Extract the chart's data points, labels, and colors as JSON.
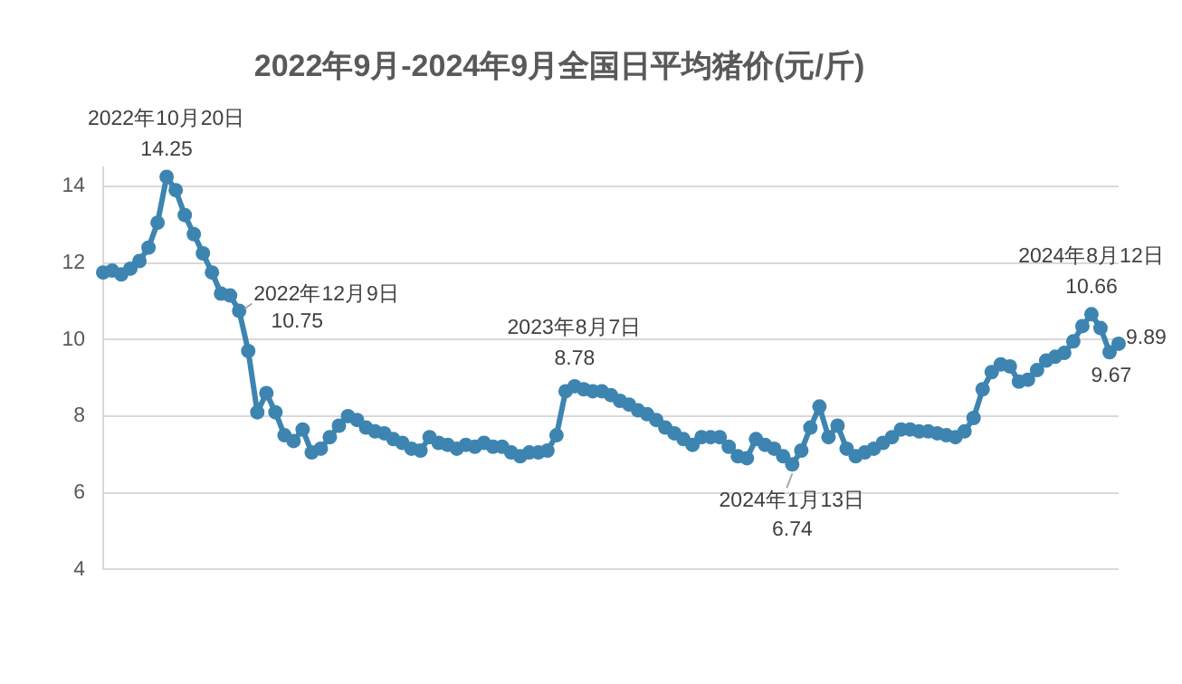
{
  "chart_data": {
    "type": "line",
    "title": "2022年9月-2024年9月全国日平均猪价(元/斤)",
    "categories": [
      null,
      null,
      null,
      null,
      null,
      null,
      null,
      null,
      null,
      null,
      null,
      null,
      null,
      null,
      null,
      null,
      null,
      null,
      null,
      null,
      null,
      null,
      null,
      null,
      null,
      null,
      null,
      null,
      null,
      null,
      null,
      null,
      null,
      null,
      null,
      null,
      null,
      null,
      null,
      null,
      null,
      null,
      null,
      null,
      null,
      null,
      null,
      null,
      null,
      null,
      null,
      null,
      null,
      null,
      null,
      null,
      null,
      null,
      null,
      null,
      null,
      null,
      null,
      null,
      null,
      null,
      null,
      null,
      null,
      null,
      null,
      null,
      null,
      null,
      null,
      null,
      null,
      null,
      null,
      null,
      null,
      null,
      null,
      null,
      null,
      null,
      null,
      null,
      null,
      null,
      null,
      null,
      null,
      null,
      null,
      null,
      null,
      null,
      null,
      null,
      null,
      null,
      null,
      null,
      null,
      null,
      null,
      null,
      null,
      null,
      null,
      null,
      null
    ],
    "series": [
      {
        "color": "#3d85b0",
        "values": [
          11.75,
          11.8,
          11.7,
          11.85,
          12.05,
          12.4,
          13.05,
          14.25,
          13.9,
          13.25,
          12.75,
          12.25,
          11.75,
          11.2,
          11.15,
          10.75,
          9.7,
          8.1,
          8.6,
          8.1,
          7.5,
          7.35,
          7.65,
          7.05,
          7.15,
          7.45,
          7.75,
          8.0,
          7.9,
          7.7,
          7.6,
          7.55,
          7.4,
          7.3,
          7.15,
          7.1,
          7.45,
          7.3,
          7.25,
          7.15,
          7.25,
          7.2,
          7.3,
          7.2,
          7.2,
          7.05,
          6.95,
          7.05,
          7.05,
          7.1,
          7.5,
          8.65,
          8.78,
          8.7,
          8.65,
          8.65,
          8.55,
          8.4,
          8.3,
          8.15,
          8.05,
          7.9,
          7.7,
          7.55,
          7.4,
          7.25,
          7.45,
          7.45,
          7.45,
          7.2,
          6.95,
          6.9,
          7.4,
          7.25,
          7.15,
          6.95,
          6.74,
          7.1,
          7.7,
          8.25,
          7.45,
          7.75,
          7.15,
          6.95,
          7.05,
          7.15,
          7.3,
          7.45,
          7.65,
          7.65,
          7.6,
          7.6,
          7.55,
          7.5,
          7.45,
          7.6,
          7.95,
          8.7,
          9.15,
          9.35,
          9.3,
          8.9,
          8.95,
          9.2,
          9.45,
          9.55,
          9.65,
          9.95,
          10.35,
          10.66,
          10.3,
          9.67,
          9.89
        ],
        "value_labels": [
          null,
          null,
          null,
          null,
          null,
          null,
          null,
          "14.25",
          null,
          null,
          null,
          null,
          null,
          null,
          null,
          "10.75",
          null,
          null,
          null,
          null,
          null,
          null,
          null,
          null,
          null,
          null,
          null,
          null,
          null,
          null,
          null,
          null,
          null,
          null,
          null,
          null,
          null,
          null,
          null,
          null,
          null,
          null,
          null,
          null,
          null,
          null,
          null,
          null,
          null,
          null,
          null,
          null,
          "8.78",
          null,
          null,
          null,
          null,
          null,
          null,
          null,
          null,
          null,
          null,
          null,
          null,
          null,
          null,
          null,
          null,
          null,
          null,
          null,
          null,
          null,
          null,
          null,
          "6.74",
          null,
          null,
          null,
          null,
          null,
          null,
          null,
          null,
          null,
          null,
          null,
          null,
          null,
          null,
          null,
          null,
          null,
          null,
          null,
          null,
          null,
          null,
          null,
          null,
          null,
          null,
          null,
          null,
          null,
          null,
          null,
          null,
          "10.66",
          null,
          "9.67",
          "9.89"
        ]
      }
    ],
    "annotations": [
      {
        "text": "2022年10月20日",
        "y": 14.25
      },
      "2022年12月9日",
      {
        "text": "2023年8月7日",
        "y": 8.78
      },
      {
        "text": "2024年1月13日",
        "y": 6.74
      },
      {
        "text": "2024年8月12日",
        "y": 10.66
      }
    ],
    "ylim": [
      4,
      14.5
    ],
    "yticks": [
      4,
      6,
      8,
      10,
      12,
      14
    ],
    "grid": "y",
    "legend": false,
    "marker": "circle",
    "line_style": "solid"
  }
}
